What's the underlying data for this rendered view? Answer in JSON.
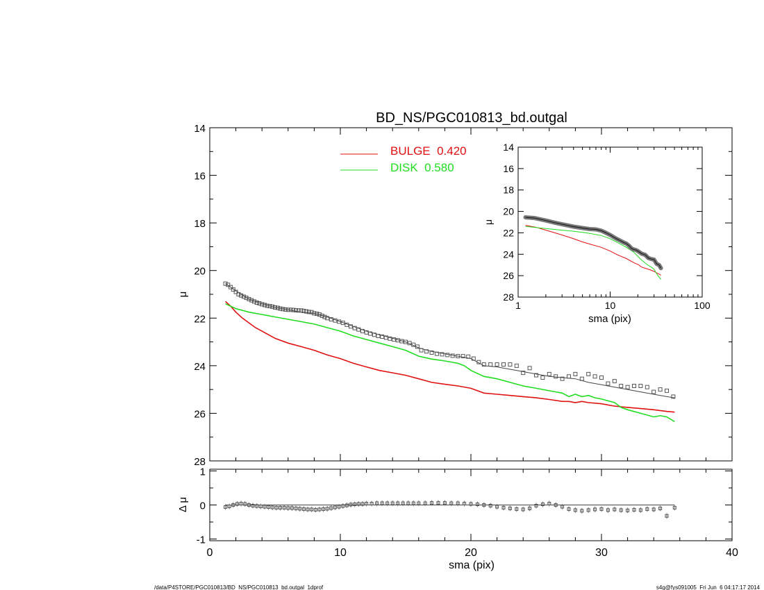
{
  "chart_data": [
    {
      "id": "main",
      "type": "line",
      "title": "BD_NS/PGC010813_bd.outgal",
      "xlabel": "",
      "ylabel": "μ",
      "xlim": [
        0,
        40
      ],
      "ylim": [
        28,
        14
      ],
      "y_inverted": true,
      "xticks": [
        "0",
        "10",
        "20",
        "30",
        "40"
      ],
      "yticks": [
        "14",
        "16",
        "18",
        "20",
        "22",
        "24",
        "26",
        "28"
      ],
      "legend": {
        "placement": "top-center",
        "entries": [
          {
            "label": "BULGE  0.420",
            "color": "#e01010"
          },
          {
            "label": "DISK  0.580",
            "color": "#20dd20"
          }
        ]
      },
      "series": [
        {
          "name": "BULGE  0.420",
          "color": "#e01010",
          "kind": "line",
          "x": [
            1.2,
            1.6,
            2.0,
            2.5,
            3.0,
            3.5,
            4.0,
            5.0,
            6.0,
            7.0,
            8.0,
            9.0,
            10.0,
            11.0,
            12.0,
            13.0,
            14.0,
            15.0,
            16.0,
            17.0,
            18.0,
            19.0,
            20.0,
            21.0,
            22.0,
            23.0,
            24.0,
            25.0,
            26.0,
            27.0,
            27.5,
            28.0,
            28.5,
            29.0,
            30.0,
            31.0,
            32.0,
            33.0,
            34.0,
            35.0,
            35.6
          ],
          "y": [
            21.3,
            21.5,
            21.75,
            22.0,
            22.2,
            22.4,
            22.55,
            22.85,
            23.05,
            23.2,
            23.35,
            23.55,
            23.7,
            23.9,
            24.05,
            24.2,
            24.3,
            24.4,
            24.55,
            24.7,
            24.78,
            24.85,
            24.95,
            25.15,
            25.2,
            25.25,
            25.3,
            25.35,
            25.42,
            25.5,
            25.5,
            25.55,
            25.5,
            25.55,
            25.6,
            25.7,
            25.75,
            25.8,
            25.85,
            25.92,
            25.95
          ]
        },
        {
          "name": "DISK  0.580",
          "color": "#20dd20",
          "kind": "line",
          "x": [
            1.2,
            2.0,
            3.0,
            4.0,
            5.0,
            6.0,
            7.0,
            8.0,
            9.0,
            10.0,
            11.0,
            12.0,
            13.0,
            14.0,
            15.0,
            16.0,
            17.0,
            18.0,
            19.0,
            19.5,
            20.0,
            21.0,
            22.0,
            23.0,
            24.0,
            25.0,
            26.0,
            26.5,
            27.0,
            27.5,
            28.0,
            28.5,
            29.0,
            29.5,
            30.0,
            31.0,
            31.5,
            32.0,
            33.0,
            34.0,
            34.5,
            35.0,
            35.6
          ],
          "y": [
            21.4,
            21.6,
            21.75,
            21.85,
            21.95,
            22.05,
            22.15,
            22.25,
            22.4,
            22.55,
            22.75,
            22.9,
            23.05,
            23.2,
            23.35,
            23.6,
            23.72,
            23.8,
            23.9,
            24.0,
            24.2,
            24.45,
            24.55,
            24.7,
            24.85,
            24.95,
            25.05,
            25.1,
            25.15,
            25.3,
            25.2,
            25.3,
            25.25,
            25.35,
            25.4,
            25.55,
            25.75,
            25.85,
            26.0,
            26.15,
            26.1,
            26.15,
            26.35
          ]
        },
        {
          "name": "",
          "color": "#444444",
          "kind": "line",
          "x": [
            1.2,
            2.0,
            3.0,
            4.0,
            5.0,
            6.0,
            7.0,
            8.0,
            9.0,
            10.0,
            11.0,
            12.0,
            13.0,
            14.0,
            15.0,
            16.0,
            17.0,
            18.0,
            19.0,
            20.0,
            21.0,
            22.0,
            23.0,
            24.0,
            25.0,
            26.0,
            27.0,
            28.0,
            29.0,
            30.0,
            31.0,
            32.0,
            33.0,
            34.0,
            35.0,
            35.6
          ],
          "y": [
            20.55,
            20.85,
            21.2,
            21.4,
            21.55,
            21.65,
            21.75,
            21.8,
            21.95,
            22.15,
            22.35,
            22.55,
            22.7,
            22.85,
            23.0,
            23.25,
            23.4,
            23.5,
            23.6,
            23.7,
            24.0,
            24.05,
            24.15,
            24.25,
            24.35,
            24.45,
            24.5,
            24.55,
            24.7,
            24.8,
            24.9,
            25.0,
            25.1,
            25.2,
            25.3,
            25.35
          ]
        },
        {
          "name": "",
          "color": "#555555",
          "kind": "points",
          "x": [
            1.2,
            1.4,
            1.6,
            1.8,
            2.0,
            2.2,
            2.4,
            2.6,
            2.8,
            3.0,
            3.2,
            3.4,
            3.6,
            3.8,
            4.0,
            4.2,
            4.4,
            4.6,
            4.8,
            5.0,
            5.2,
            5.4,
            5.6,
            5.8,
            6.0,
            6.2,
            6.4,
            6.6,
            6.8,
            7.0,
            7.2,
            7.4,
            7.6,
            7.8,
            8.0,
            8.2,
            8.4,
            8.6,
            8.8,
            9.0,
            9.3,
            9.6,
            9.9,
            10.2,
            10.5,
            10.8,
            11.1,
            11.4,
            11.7,
            12.0,
            12.3,
            12.6,
            12.9,
            13.2,
            13.5,
            13.8,
            14.1,
            14.4,
            14.7,
            15.0,
            15.3,
            15.6,
            15.9,
            16.2,
            16.6,
            17.0,
            17.4,
            17.8,
            18.2,
            18.6,
            19.0,
            19.4,
            19.8,
            20.2,
            20.6,
            21.0,
            21.5,
            22.0,
            22.5,
            23.0,
            23.5,
            24.0,
            24.5,
            25.0,
            25.5,
            26.0,
            26.5,
            27.0,
            27.5,
            28.0,
            28.5,
            29.0,
            29.5,
            30.0,
            30.5,
            31.0,
            31.5,
            32.0,
            32.5,
            33.0,
            33.5,
            34.0,
            34.5,
            35.0,
            35.5
          ],
          "y": [
            20.55,
            20.6,
            20.7,
            20.8,
            20.9,
            21.0,
            21.05,
            21.1,
            21.15,
            21.2,
            21.25,
            21.3,
            21.35,
            21.38,
            21.42,
            21.45,
            21.48,
            21.5,
            21.52,
            21.55,
            21.57,
            21.6,
            21.62,
            21.64,
            21.65,
            21.65,
            21.66,
            21.67,
            21.68,
            21.68,
            21.7,
            21.72,
            21.74,
            21.75,
            21.8,
            21.82,
            21.85,
            21.9,
            21.95,
            22.0,
            22.05,
            22.1,
            22.15,
            22.2,
            22.28,
            22.35,
            22.42,
            22.48,
            22.55,
            22.6,
            22.65,
            22.7,
            22.75,
            22.78,
            22.82,
            22.86,
            22.9,
            22.93,
            22.97,
            23.0,
            23.05,
            23.12,
            23.2,
            23.35,
            23.4,
            23.45,
            23.5,
            23.52,
            23.55,
            23.58,
            23.6,
            23.6,
            23.62,
            23.7,
            23.85,
            23.95,
            23.95,
            23.95,
            23.95,
            23.95,
            24.0,
            24.3,
            24.1,
            24.4,
            24.5,
            24.35,
            24.45,
            24.55,
            24.45,
            24.35,
            24.55,
            24.35,
            24.45,
            24.5,
            24.75,
            24.65,
            24.85,
            24.9,
            24.85,
            24.85,
            24.9,
            25.1,
            25.0,
            25.05,
            25.3
          ]
        }
      ]
    },
    {
      "id": "inset",
      "type": "line",
      "xlabel": "sma (pix)",
      "ylabel": "μ",
      "x_scale": "log",
      "xlim": [
        1,
        100
      ],
      "ylim": [
        28,
        14
      ],
      "y_inverted": true,
      "xticks": [
        "1",
        "10",
        "100"
      ],
      "yticks": [
        "14",
        "16",
        "18",
        "20",
        "22",
        "24",
        "26",
        "28"
      ],
      "series": [
        {
          "name": "",
          "color": "#e01010",
          "kind": "line",
          "x": [
            1.2,
            1.6,
            2.0,
            3.0,
            4.0,
            5.0,
            6.0,
            8.0,
            10.0,
            12.0,
            15.0,
            18.0,
            20.0,
            22.0,
            25.0,
            28.0,
            30.0,
            33.0,
            35.6
          ],
          "y": [
            21.3,
            21.5,
            21.75,
            22.2,
            22.55,
            22.85,
            23.05,
            23.35,
            23.7,
            24.05,
            24.4,
            24.78,
            24.95,
            25.2,
            25.35,
            25.5,
            25.6,
            25.8,
            25.95
          ]
        },
        {
          "name": "",
          "color": "#20dd20",
          "kind": "line",
          "x": [
            1.2,
            2.0,
            3.0,
            4.0,
            5.0,
            6.0,
            8.0,
            10.0,
            12.0,
            15.0,
            18.0,
            20.0,
            22.0,
            25.0,
            28.0,
            30.0,
            33.0,
            35.6
          ],
          "y": [
            21.4,
            21.6,
            21.75,
            21.85,
            21.95,
            22.05,
            22.25,
            22.55,
            22.9,
            23.35,
            23.8,
            24.2,
            24.55,
            24.95,
            25.2,
            25.4,
            26.0,
            26.35
          ]
        },
        {
          "name": "",
          "color": "#555555",
          "kind": "band",
          "x": [
            1.2,
            1.5,
            2.0,
            2.5,
            3.0,
            4.0,
            5.0,
            6.0,
            7.0,
            8.0,
            9.0,
            10.0,
            11.0,
            12.0,
            13.0,
            14.0,
            15.0,
            16.0,
            17.0,
            18.0,
            19.0,
            20.0,
            22.0,
            24.0,
            26.0,
            28.0,
            30.0,
            32.0,
            34.0,
            35.6
          ],
          "y": [
            20.55,
            20.62,
            20.85,
            21.05,
            21.2,
            21.42,
            21.55,
            21.65,
            21.68,
            21.8,
            22.0,
            22.2,
            22.42,
            22.6,
            22.75,
            22.9,
            23.0,
            23.2,
            23.45,
            23.55,
            23.6,
            23.7,
            23.95,
            24.05,
            24.35,
            24.45,
            24.5,
            24.9,
            25.0,
            25.3
          ]
        }
      ]
    },
    {
      "id": "residual",
      "type": "scatter",
      "xlabel": "sma (pix)",
      "ylabel": "Δ μ",
      "xlim": [
        0,
        40
      ],
      "ylim": [
        -1.05,
        1.05
      ],
      "xticks": [
        "0",
        "10",
        "20",
        "30",
        "40"
      ],
      "yticks": [
        "1",
        "0",
        "-1"
      ],
      "series": [
        {
          "name": "",
          "color": "#555555",
          "kind": "points",
          "x": [
            1.2,
            1.5,
            1.8,
            2.1,
            2.4,
            2.7,
            3.0,
            3.3,
            3.6,
            3.9,
            4.2,
            4.5,
            4.8,
            5.1,
            5.4,
            5.7,
            6.0,
            6.3,
            6.6,
            6.9,
            7.2,
            7.5,
            7.8,
            8.1,
            8.4,
            8.7,
            9.0,
            9.3,
            9.6,
            9.9,
            10.2,
            10.5,
            10.8,
            11.1,
            11.4,
            11.7,
            12.0,
            12.4,
            12.8,
            13.2,
            13.6,
            14.0,
            14.4,
            14.8,
            15.2,
            15.6,
            16.0,
            16.5,
            17.0,
            17.5,
            18.0,
            18.5,
            19.0,
            19.5,
            20.0,
            20.5,
            21.0,
            21.5,
            22.0,
            22.5,
            23.0,
            23.5,
            24.0,
            24.5,
            25.0,
            25.5,
            26.0,
            26.5,
            27.0,
            27.5,
            28.0,
            28.5,
            29.0,
            29.5,
            30.0,
            30.5,
            31.0,
            31.5,
            32.0,
            32.5,
            33.0,
            33.5,
            34.0,
            34.5,
            35.0,
            35.6
          ],
          "y": [
            -0.06,
            -0.04,
            0.0,
            0.03,
            0.04,
            0.03,
            0.0,
            -0.02,
            -0.03,
            -0.04,
            -0.05,
            -0.06,
            -0.07,
            -0.08,
            -0.08,
            -0.08,
            -0.09,
            -0.09,
            -0.1,
            -0.11,
            -0.12,
            -0.13,
            -0.13,
            -0.14,
            -0.13,
            -0.12,
            -0.11,
            -0.09,
            -0.07,
            -0.05,
            -0.03,
            -0.01,
            0.01,
            0.02,
            0.03,
            0.03,
            0.04,
            0.04,
            0.05,
            0.05,
            0.05,
            0.05,
            0.05,
            0.05,
            0.05,
            0.05,
            0.05,
            0.05,
            0.06,
            0.06,
            0.06,
            0.05,
            0.05,
            0.04,
            0.03,
            0.02,
            0.0,
            -0.02,
            -0.05,
            -0.08,
            -0.1,
            -0.12,
            -0.13,
            -0.1,
            -0.02,
            0.02,
            0.04,
            0.0,
            -0.05,
            -0.12,
            -0.15,
            -0.17,
            -0.15,
            -0.13,
            -0.12,
            -0.15,
            -0.13,
            -0.15,
            -0.16,
            -0.14,
            -0.15,
            -0.12,
            -0.13,
            -0.1,
            -0.32,
            -0.08
          ]
        }
      ]
    }
  ],
  "footer": {
    "left": "/data/P4STORE/PGC010813/BD_NS/PGC010813_bd.outgal_1dprof",
    "right": "s4g@fys091005  Fri Jun  6 04:17:17 2014"
  }
}
